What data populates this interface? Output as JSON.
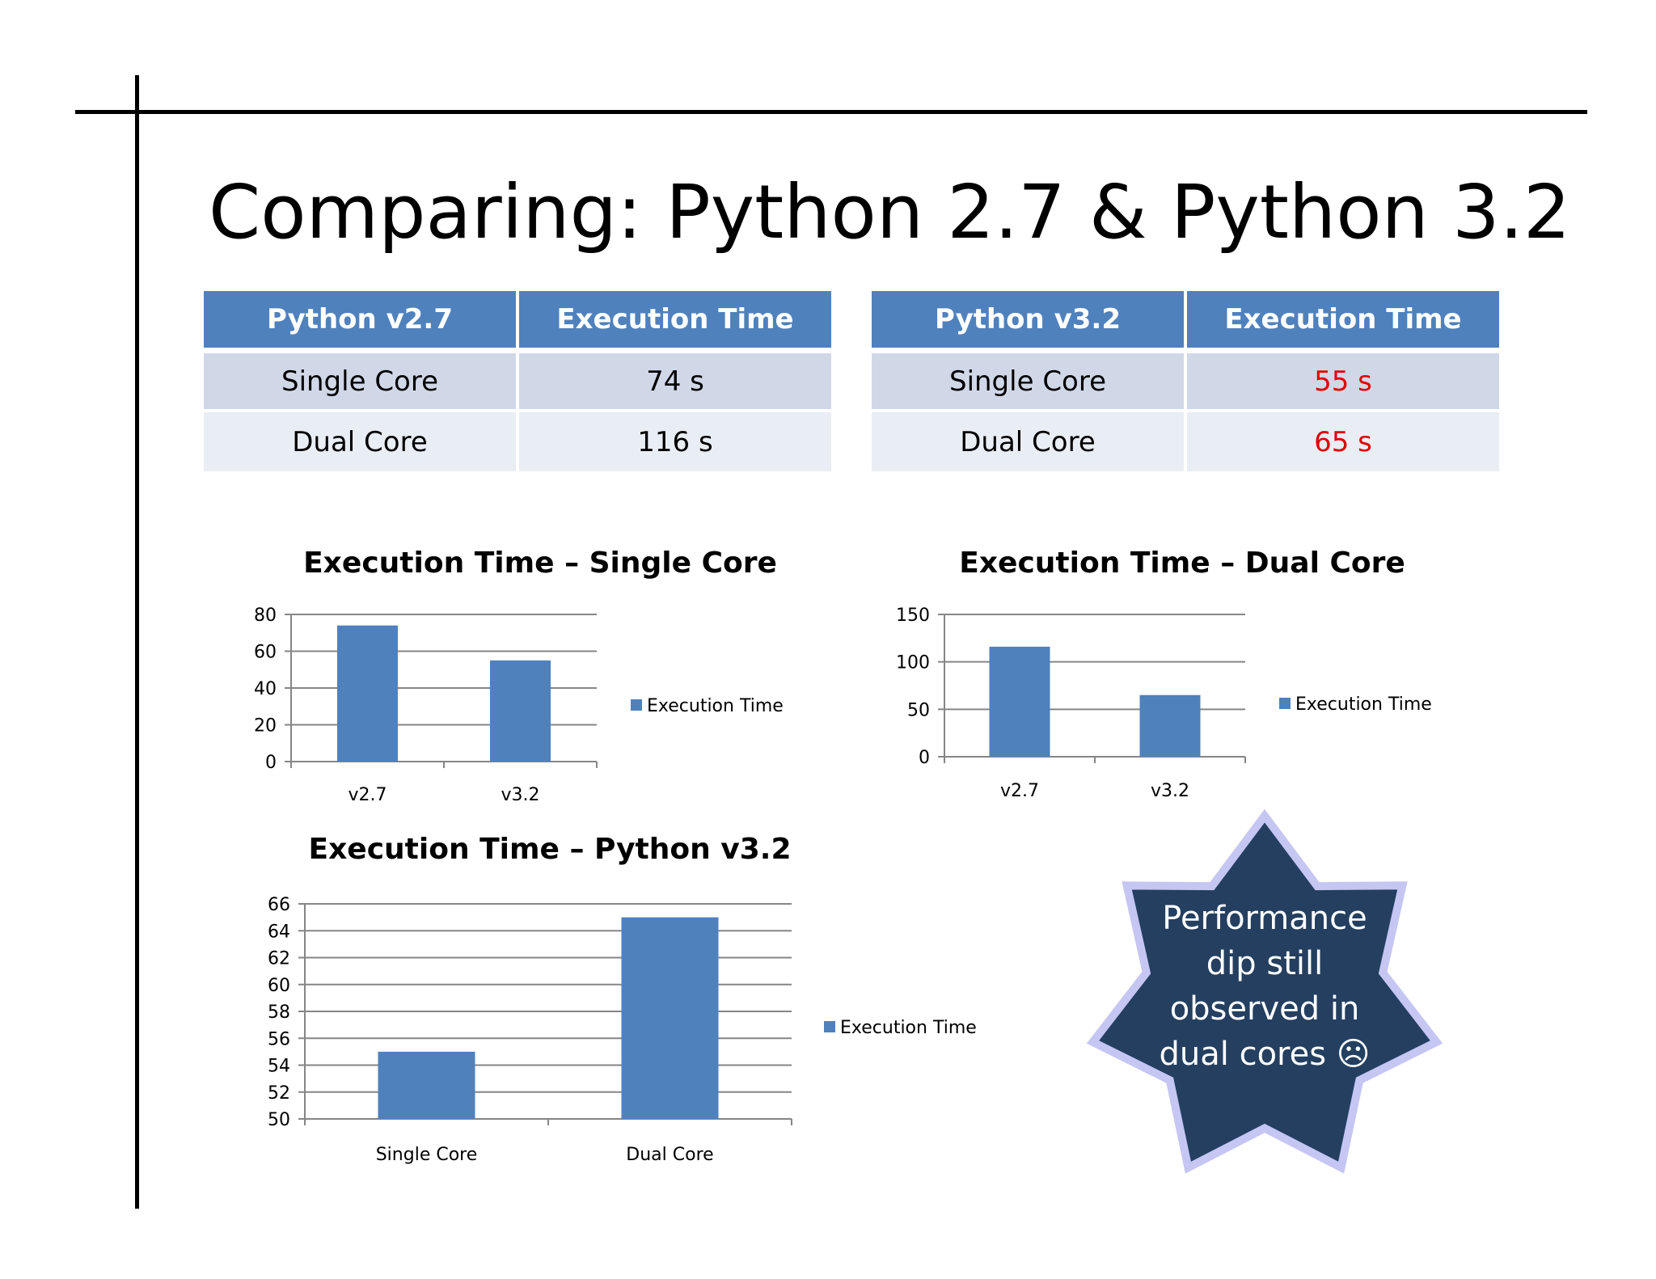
{
  "slide": {
    "title": "Comparing: Python 2.7 & Python 3.2"
  },
  "tables": [
    {
      "headers": [
        "Python v2.7",
        "Execution Time"
      ],
      "rows": [
        [
          "Single Core",
          "74 s"
        ],
        [
          "Dual Core",
          "116 s"
        ]
      ]
    },
    {
      "headers": [
        "Python v3.2",
        "Execution Time"
      ],
      "rows": [
        [
          "Single Core",
          "55 s"
        ],
        [
          "Dual Core",
          "65 s"
        ]
      ]
    }
  ],
  "callout": {
    "lines": [
      "Performance",
      "dip still",
      "observed in",
      "dual cores ☹"
    ],
    "fill_color": "#243f60",
    "border_color": "#c5c6f2"
  },
  "colors": {
    "bar": "#4f81bd",
    "header": "#4f81bd",
    "highlight": "#e00000"
  },
  "chart_data": [
    {
      "type": "bar",
      "title": "Execution Time – Single Core",
      "categories": [
        "v2.7",
        "v3.2"
      ],
      "series": [
        {
          "name": "Execution Time",
          "values": [
            74,
            55
          ]
        }
      ],
      "ylim": [
        0,
        80
      ],
      "yticks": [
        0,
        20,
        40,
        60,
        80
      ],
      "grid": true,
      "legend": "right"
    },
    {
      "type": "bar",
      "title": "Execution Time – Dual Core",
      "categories": [
        "v2.7",
        "v3.2"
      ],
      "series": [
        {
          "name": "Execution Time",
          "values": [
            116,
            65
          ]
        }
      ],
      "ylim": [
        0,
        150
      ],
      "yticks": [
        0,
        50,
        100,
        150
      ],
      "grid": true,
      "legend": "right"
    },
    {
      "type": "bar",
      "title": "Execution Time – Python v3.2",
      "categories": [
        "Single Core",
        "Dual Core"
      ],
      "series": [
        {
          "name": "Execution Time",
          "values": [
            55,
            65
          ]
        }
      ],
      "ylim": [
        50,
        66
      ],
      "yticks": [
        50,
        52,
        54,
        56,
        58,
        60,
        62,
        64,
        66
      ],
      "grid": true,
      "legend": "right"
    }
  ]
}
